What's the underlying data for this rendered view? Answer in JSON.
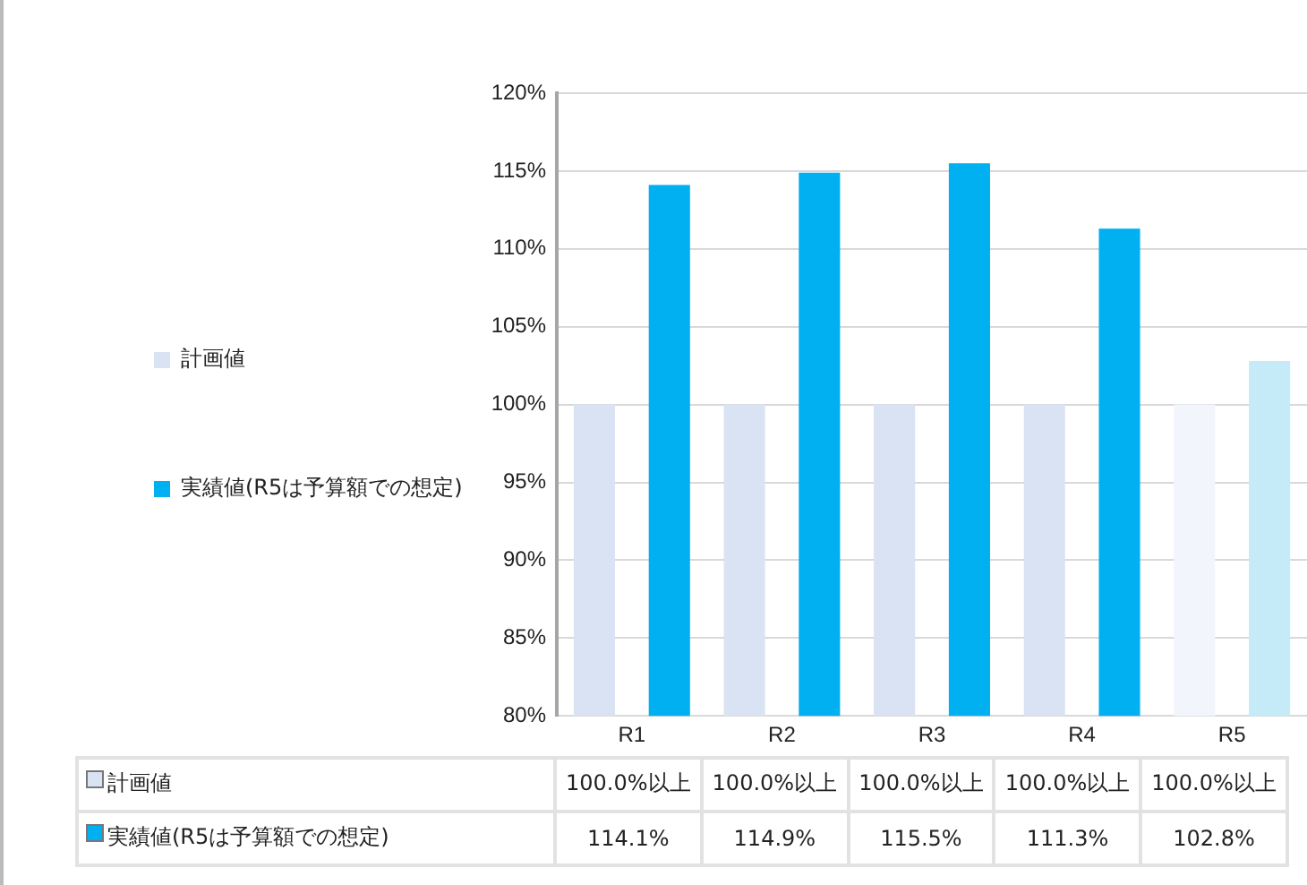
{
  "chart_data": {
    "type": "bar",
    "categories": [
      "R1",
      "R2",
      "R3",
      "R4",
      "R5"
    ],
    "series": [
      {
        "name": "計画値",
        "color": "#dae3f3",
        "colors": [
          "#dae3f3",
          "#dae3f3",
          "#dae3f3",
          "#dae3f3",
          "#f2f5fc"
        ],
        "values": [
          100,
          100,
          100,
          100,
          100
        ],
        "value_labels": [
          "100.0%以上",
          "100.0%以上",
          "100.0%以上",
          "100.0%以上",
          "100.0%以上"
        ]
      },
      {
        "name": "実績値(R5は予算額での想定)",
        "color": "#00b0f0",
        "colors": [
          "#00b0f0",
          "#00b0f0",
          "#00b0f0",
          "#00b0f0",
          "#c5ebf8"
        ],
        "values": [
          114.1,
          114.9,
          115.5,
          111.3,
          102.8
        ],
        "value_labels": [
          "114.1%",
          "114.9%",
          "115.5%",
          "111.3%",
          "102.8%"
        ]
      }
    ],
    "ylim": [
      80,
      120
    ],
    "yticks": [
      {
        "value": 80,
        "label": "80%"
      },
      {
        "value": 85,
        "label": "85%"
      },
      {
        "value": 90,
        "label": "90%"
      },
      {
        "value": 95,
        "label": "95%"
      },
      {
        "value": 100,
        "label": "100%"
      },
      {
        "value": 105,
        "label": "105%"
      },
      {
        "value": 110,
        "label": "110%"
      },
      {
        "value": 115,
        "label": "115%"
      },
      {
        "value": 120,
        "label": "120%"
      }
    ],
    "grid": "y",
    "legend": "left"
  }
}
